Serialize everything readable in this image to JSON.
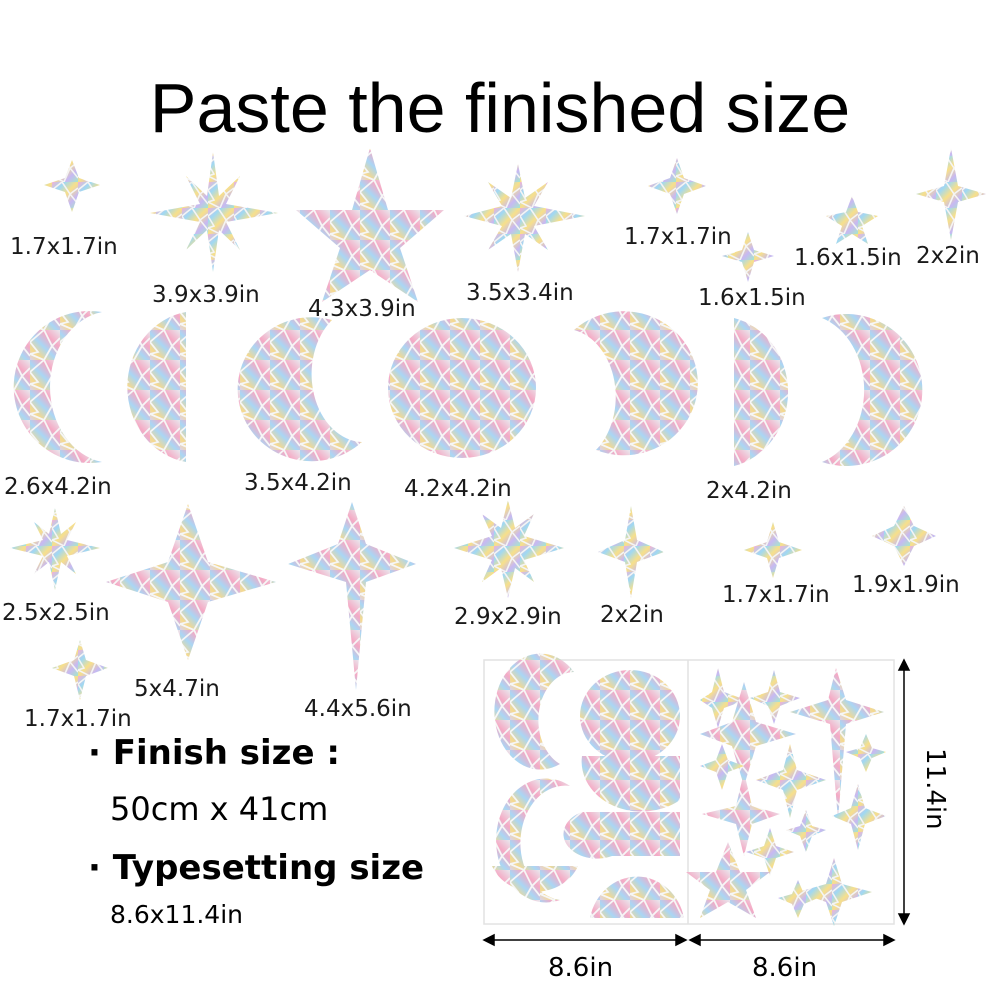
{
  "title": "Paste the finished size",
  "sticker_labels": {
    "star_small_1": "1.7x1.7in",
    "star_8pt_a": "3.9x3.9in",
    "star_5pt_big": "4.3x3.9in",
    "star_8pt_b": "3.5x3.4in",
    "star_small_2": "1.7x1.7in",
    "star_small_3": "1.6x1.5in",
    "star_small_4": "1.6x1.5in",
    "star_small_5": "2x2in",
    "moon_crescent_left": "2.6x4.2in",
    "moon_gibbous_left": "3.5x4.2in",
    "moon_full": "4.2x4.2in",
    "moon_half_right": "2x4.2in",
    "star_8pt_c": "2.5x2.5in",
    "star_4pt_big": "5x4.7in",
    "star_north": "4.4x5.6in",
    "star_8pt_d": "2.9x2.9in",
    "star_small_6": "2x2in",
    "star_small_7": "1.7x1.7in",
    "star_small_8": "1.9x1.9in",
    "star_small_9": "1.7x1.7in"
  },
  "specs": {
    "finish_size_label": "Finish size :",
    "finish_size_value": "50cm x 41cm",
    "typesetting_label": "Typesetting size",
    "typesetting_value": "8.6x11.4in"
  },
  "sheet": {
    "width_left": "8.6in",
    "width_right": "8.6in",
    "height": "11.4in"
  },
  "colors": {
    "holo_a": "#f3b2d0",
    "holo_b": "#9fd8f3",
    "holo_c": "#f8e08a",
    "holo_d": "#c7b8f3",
    "holo_e": "#a6e8c8"
  }
}
